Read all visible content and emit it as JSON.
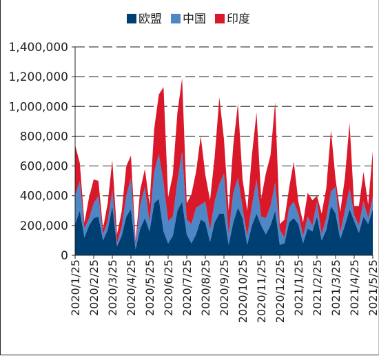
{
  "chart_data": {
    "type": "area",
    "stacked": true,
    "legend_position": "top-center",
    "grid": "horizontal-dashed",
    "ylim": [
      0,
      1400000
    ],
    "yticks": [
      0,
      200000,
      400000,
      600000,
      800000,
      1000000,
      1200000,
      1400000
    ],
    "ytick_labels": [
      "0",
      "200,000",
      "400,000",
      "600,000",
      "800,000",
      "1,000,000",
      "1,200,000",
      "1,400,000"
    ],
    "xtick_labels": [
      "2020/1/25",
      "2020/2/25",
      "2020/3/25",
      "2020/4/25",
      "2020/5/25",
      "2020/6/25",
      "2020/7/25",
      "2020/8/25",
      "2020/9/25",
      "2020/10/25",
      "2020/11/25",
      "2020/12/25",
      "2021/1/25",
      "2021/2/25",
      "2021/3/25",
      "2021/4/25",
      "2021/5/25"
    ],
    "x": [
      "2020/1/25",
      "2020/2/4",
      "2020/2/11",
      "2020/2/18",
      "2020/2/25",
      "2020/3/5",
      "2020/3/11",
      "2020/3/18",
      "2020/3/25",
      "2020/4/4",
      "2020/4/11",
      "2020/4/18",
      "2020/4/25",
      "2020/5/5",
      "2020/5/11",
      "2020/5/18",
      "2020/5/25",
      "2020/6/4",
      "2020/6/11",
      "2020/6/18",
      "2020/6/25",
      "2020/7/5",
      "2020/7/11",
      "2020/7/18",
      "2020/7/25",
      "2020/8/4",
      "2020/8/11",
      "2020/8/18",
      "2020/8/25",
      "2020/9/4",
      "2020/9/11",
      "2020/9/18",
      "2020/9/25",
      "2020/10/5",
      "2020/10/11",
      "2020/10/18",
      "2020/10/25",
      "2020/11/4",
      "2020/11/11",
      "2020/11/18",
      "2020/11/25",
      "2020/12/5",
      "2020/12/11",
      "2020/12/18",
      "2020/12/25",
      "2021/1/4",
      "2021/1/11",
      "2021/1/18",
      "2021/1/25",
      "2021/2/4",
      "2021/2/11",
      "2021/2/18",
      "2021/2/25",
      "2021/3/5",
      "2021/3/11",
      "2021/3/18",
      "2021/3/25",
      "2021/4/4",
      "2021/4/11",
      "2021/4/18",
      "2021/4/25",
      "2021/5/5",
      "2021/5/11",
      "2021/5/18",
      "2021/5/25"
    ],
    "series": [
      {
        "name": "欧盟",
        "color": "#003f72",
        "values": [
          210000,
          300000,
          120000,
          200000,
          250000,
          260000,
          100000,
          170000,
          330000,
          60000,
          130000,
          260000,
          310000,
          40000,
          180000,
          250000,
          160000,
          350000,
          380000,
          160000,
          80000,
          130000,
          300000,
          360000,
          140000,
          80000,
          140000,
          240000,
          220000,
          90000,
          220000,
          280000,
          280000,
          70000,
          220000,
          320000,
          250000,
          70000,
          200000,
          280000,
          200000,
          140000,
          200000,
          300000,
          70000,
          80000,
          220000,
          250000,
          210000,
          80000,
          180000,
          160000,
          260000,
          100000,
          170000,
          330000,
          280000,
          110000,
          200000,
          310000,
          230000,
          150000,
          260000,
          210000,
          310000
        ]
      },
      {
        "name": "中国",
        "color": "#4f86c6",
        "values": [
          190000,
          200000,
          60000,
          50000,
          100000,
          140000,
          40000,
          60000,
          110000,
          20000,
          60000,
          140000,
          210000,
          30000,
          160000,
          210000,
          60000,
          210000,
          300000,
          330000,
          150000,
          130000,
          200000,
          340000,
          100000,
          130000,
          180000,
          100000,
          140000,
          80000,
          140000,
          200000,
          270000,
          70000,
          200000,
          200000,
          70000,
          60000,
          130000,
          230000,
          60000,
          110000,
          130000,
          190000,
          100000,
          40000,
          100000,
          110000,
          70000,
          50000,
          80000,
          40000,
          100000,
          40000,
          80000,
          100000,
          180000,
          40000,
          100000,
          140000,
          40000,
          50000,
          100000,
          40000,
          80000
        ]
      },
      {
        "name": "印度",
        "color": "#d9182a",
        "values": [
          340000,
          120000,
          40000,
          140000,
          160000,
          100000,
          40000,
          120000,
          200000,
          60000,
          100000,
          200000,
          150000,
          30000,
          100000,
          120000,
          120000,
          290000,
          400000,
          640000,
          160000,
          280000,
          460000,
          490000,
          110000,
          200000,
          240000,
          460000,
          180000,
          200000,
          300000,
          580000,
          230000,
          160000,
          320000,
          500000,
          190000,
          170000,
          340000,
          450000,
          120000,
          300000,
          340000,
          540000,
          40000,
          120000,
          130000,
          270000,
          80000,
          90000,
          160000,
          170000,
          40000,
          140000,
          200000,
          410000,
          50000,
          140000,
          220000,
          440000,
          60000,
          130000,
          200000,
          90000,
          310000
        ]
      }
    ]
  }
}
